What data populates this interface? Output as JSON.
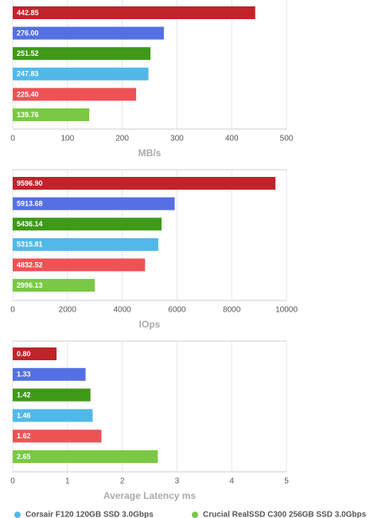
{
  "chart_data": [
    {
      "type": "bar",
      "orientation": "horizontal",
      "xlabel": "MB/s",
      "values": [
        442.85,
        276.0,
        251.52,
        247.83,
        225.4,
        139.76
      ],
      "value_labels": [
        "442.85",
        "276.00",
        "251.52",
        "247.83",
        "225.40",
        "139.76"
      ],
      "colors": [
        "#c1232b",
        "#5470e2",
        "#3e9a17",
        "#50b9ea",
        "#ee5255",
        "#79c944"
      ],
      "xlim": [
        0,
        500
      ],
      "xticks": [
        0,
        100,
        200,
        300,
        400,
        500
      ],
      "grid": true
    },
    {
      "type": "bar",
      "orientation": "horizontal",
      "xlabel": "IOps",
      "values": [
        9596.9,
        5913.68,
        5436.14,
        5315.81,
        4832.52,
        2996.13
      ],
      "value_labels": [
        "9596.90",
        "5913.68",
        "5436.14",
        "5315.81",
        "4832.52",
        "2996.13"
      ],
      "colors": [
        "#c1232b",
        "#5470e2",
        "#3e9a17",
        "#50b9ea",
        "#ee5255",
        "#79c944"
      ],
      "xlim": [
        0,
        10000
      ],
      "xticks": [
        0,
        2000,
        4000,
        6000,
        8000,
        10000
      ],
      "grid": true
    },
    {
      "type": "bar",
      "orientation": "horizontal",
      "xlabel": "Average Latency ms",
      "values": [
        0.8,
        1.33,
        1.42,
        1.46,
        1.62,
        2.65
      ],
      "value_labels": [
        "0.80",
        "1.33",
        "1.42",
        "1.46",
        "1.62",
        "2.65"
      ],
      "colors": [
        "#c1232b",
        "#5470e2",
        "#3e9a17",
        "#50b9ea",
        "#ee5255",
        "#79c944"
      ],
      "xlim": [
        0,
        5
      ],
      "xticks": [
        0,
        1,
        2,
        3,
        4,
        5
      ],
      "grid": true
    }
  ],
  "legend": [
    {
      "label": "Corsair F120 120GB SSD 3.0Gbps",
      "color": "#50b9ea"
    },
    {
      "label": "Crucial RealSSD C300 256GB SSD 3.0Gbps",
      "color": "#79c944"
    }
  ]
}
